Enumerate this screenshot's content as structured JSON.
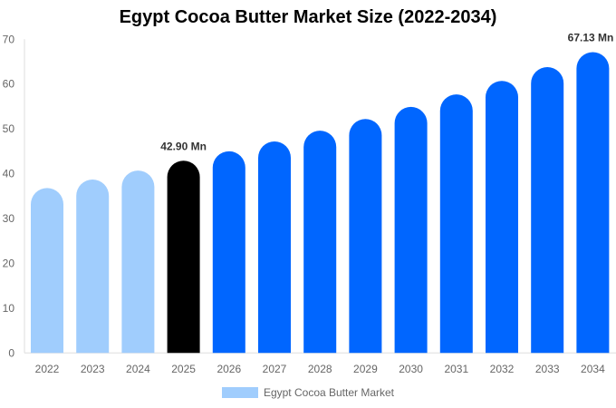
{
  "chart_data": {
    "type": "bar",
    "title": "Egypt Cocoa Butter Market Size (2022-2034)",
    "categories": [
      "2022",
      "2023",
      "2024",
      "2025",
      "2026",
      "2027",
      "2028",
      "2029",
      "2030",
      "2031",
      "2032",
      "2033",
      "2034"
    ],
    "series": [
      {
        "name": "Egypt Cocoa Butter Market",
        "values": [
          36.8,
          38.7,
          40.7,
          42.9,
          45.0,
          47.2,
          49.6,
          52.2,
          54.9,
          57.7,
          60.7,
          63.8,
          67.13
        ]
      }
    ],
    "data_labels": [
      {
        "category": "2025",
        "text": "42.90 Mn"
      },
      {
        "category": "2034",
        "text": "67.13 Mn"
      }
    ],
    "ylim": [
      0,
      70
    ],
    "yticks": [
      0,
      10,
      20,
      30,
      40,
      50,
      60,
      70
    ],
    "grid": false,
    "legend_placement": "bottom",
    "colors": {
      "historic": "#a0cdfd",
      "current": "#000000",
      "forecast": "#0066ff"
    }
  }
}
